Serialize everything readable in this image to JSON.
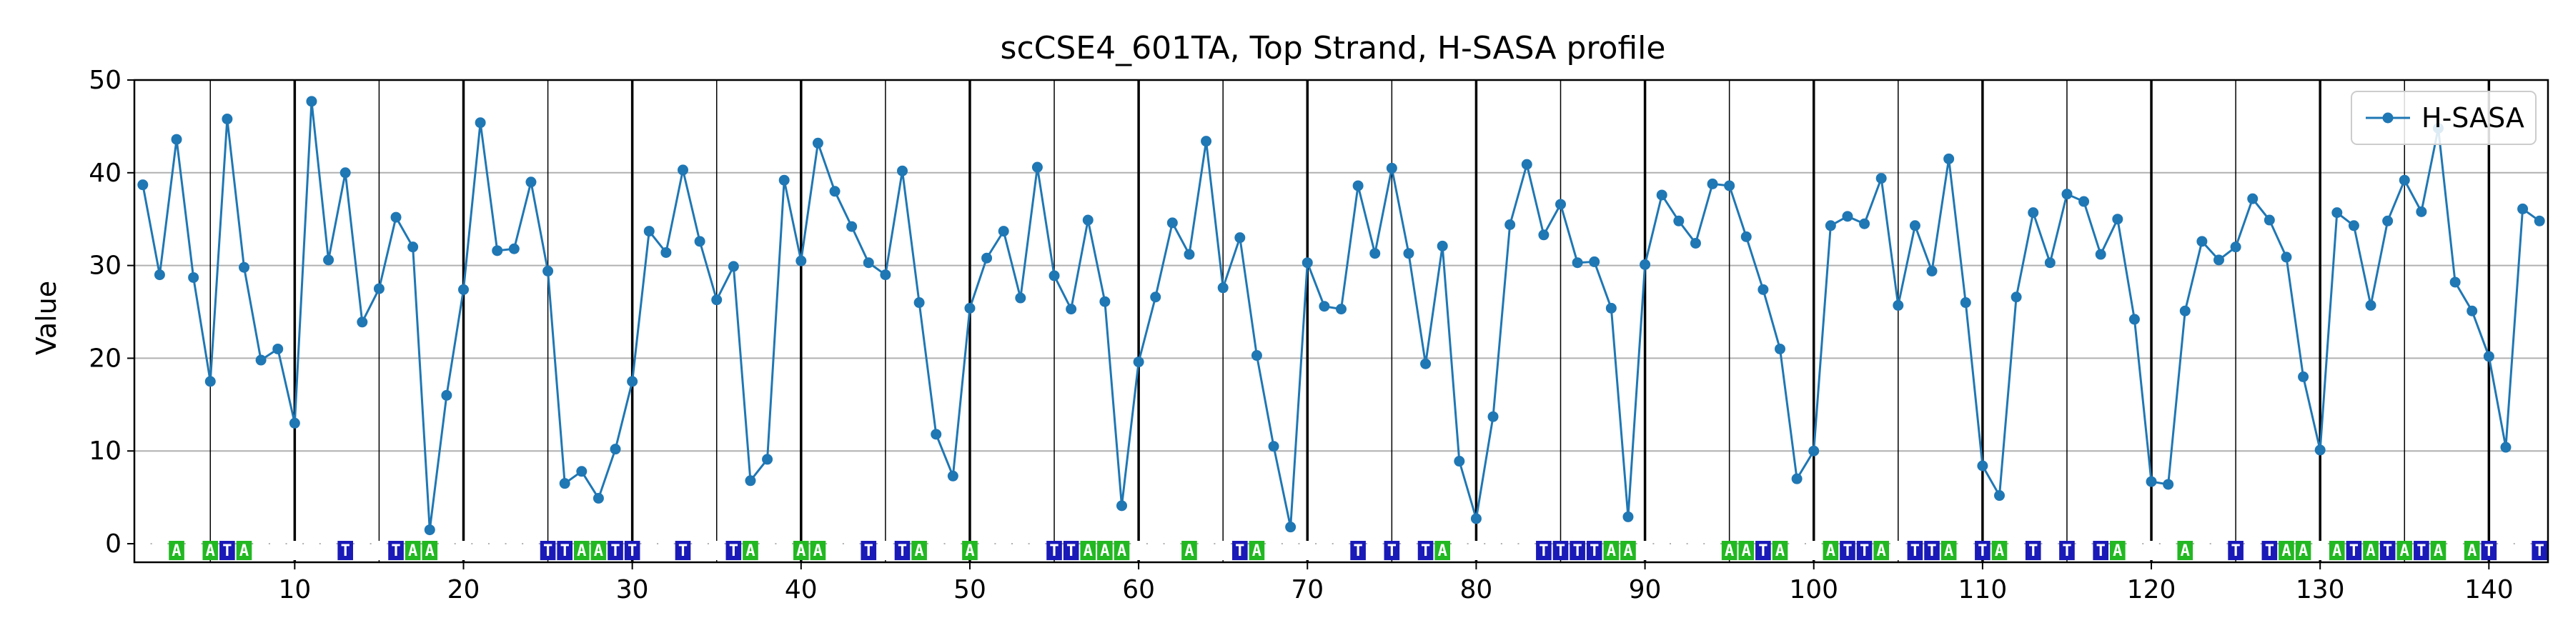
{
  "chart_data": {
    "type": "line",
    "title": "scCSE4_601TA, Top Strand, H-SASA profile",
    "xlabel": "",
    "ylabel": "Value",
    "xlim": [
      0.5,
      143.5
    ],
    "ylim": [
      -2,
      50
    ],
    "x_ticks": [
      10,
      20,
      30,
      40,
      50,
      60,
      70,
      80,
      90,
      100,
      110,
      120,
      130,
      140
    ],
    "y_ticks": [
      0,
      10,
      20,
      30,
      40,
      50
    ],
    "grid": true,
    "legend_position": "top-right",
    "series": [
      {
        "name": "H-SASA",
        "color": "#1f77b4",
        "x_start": 1,
        "values": [
          38.7,
          29.0,
          43.6,
          28.7,
          17.5,
          45.8,
          29.8,
          19.8,
          21.0,
          13.0,
          47.7,
          30.6,
          40.0,
          23.9,
          27.5,
          35.2,
          32.0,
          1.5,
          16.0,
          27.4,
          45.4,
          31.6,
          31.8,
          39.0,
          29.4,
          6.5,
          7.8,
          4.9,
          10.2,
          17.5,
          33.7,
          31.4,
          40.3,
          32.6,
          26.3,
          29.9,
          6.8,
          9.1,
          39.2,
          30.5,
          43.2,
          38.0,
          34.2,
          30.3,
          29.0,
          40.2,
          26.0,
          11.8,
          7.3,
          25.4,
          30.8,
          33.7,
          26.5,
          40.6,
          28.9,
          25.3,
          34.9,
          26.1,
          4.1,
          19.6,
          26.6,
          34.6,
          31.2,
          43.4,
          27.6,
          33.0,
          20.3,
          10.5,
          1.8,
          30.3,
          25.6,
          25.3,
          38.6,
          31.3,
          40.5,
          31.3,
          19.4,
          32.1,
          8.9,
          2.7,
          13.7,
          34.4,
          40.9,
          33.3,
          36.6,
          30.3,
          30.4,
          25.4,
          2.9,
          30.1,
          37.6,
          34.8,
          32.4,
          38.8,
          38.6,
          33.1,
          27.4,
          21.0,
          7.0,
          10.0,
          34.3,
          35.3,
          34.5,
          39.4,
          25.7,
          34.3,
          29.4,
          41.5,
          26.0,
          8.4,
          5.2,
          26.6,
          35.7,
          30.3,
          37.7,
          36.9,
          31.2,
          35.0,
          24.2,
          6.7,
          6.4,
          25.1,
          32.6,
          30.6,
          32.0,
          37.2,
          34.9,
          30.9,
          18.0,
          10.1,
          35.7,
          34.3,
          25.7,
          34.8,
          39.2,
          35.8,
          44.8,
          28.2,
          25.1,
          20.2,
          10.4,
          36.1,
          34.8
        ]
      }
    ],
    "sequence": "GGAGATACCCGGTGCTAAGGCCGCTTAATTGGTCGTAGCAAGCTCTAGCACCGCTTAAACGCACGTACGCGCTGTCTACCGCGTTTTAACCGCCAATAGGATTACTTACTAGTCTCTAGGCACGTGTAAGATATATACATCCT",
    "base_colors": {
      "A": "#22b822",
      "T": "#1a1ab8",
      "G": "#ffffff",
      "C": "#ffffff"
    }
  }
}
